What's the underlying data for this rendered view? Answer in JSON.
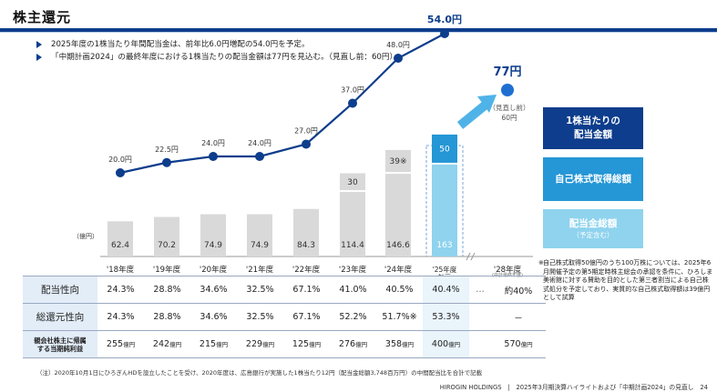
{
  "header": {
    "title": "株主還元"
  },
  "bullets": [
    "2025年度の1株当たり年間配当金は、前年比6.0円増配の54.0円を予定。",
    "「中期計画2024」の最終年度における1株当たりの配当金額は77円を見込む。（見直し前：60円）"
  ],
  "chart_data": {
    "type": "bar",
    "unit_label": "（億円）",
    "categories": [
      "'18年度",
      "'19年度",
      "'20年度",
      "'21年度",
      "'22年度",
      "'23年度",
      "'24年度",
      "'25年度\n計画",
      "'28年度"
    ],
    "category_note": "(中計最終年度)",
    "series": [
      {
        "name": "配当金総額",
        "values": [
          62.4,
          70.2,
          74.9,
          74.9,
          84.3,
          114.4,
          146.6,
          163,
          null
        ]
      },
      {
        "name": "自己株式取得総額",
        "values": [
          null,
          null,
          null,
          null,
          null,
          30,
          39,
          50,
          null
        ]
      },
      {
        "name": "1株当たりの配当金額",
        "values": [
          20.0,
          22.5,
          24.0,
          24.0,
          27.0,
          37.0,
          48.0,
          54.0,
          77
        ]
      }
    ],
    "value_labels": {
      "dps": [
        "20.0円",
        "22.5円",
        "24.0円",
        "24.0円",
        "27.0円",
        "37.0円",
        "48.0円",
        "54.0円",
        "77円"
      ],
      "buyback": [
        "",
        "",
        "",
        "",
        "",
        "30",
        "39※",
        "50",
        ""
      ],
      "dividend": [
        "62.4",
        "70.2",
        "74.9",
        "74.9",
        "84.3",
        "114.4",
        "146.6",
        "163",
        ""
      ]
    },
    "forecast_note": [
      "（見直し前）",
      "60円"
    ]
  },
  "legend": {
    "dps_line1": "1株当たりの",
    "dps_line2": "配当金額",
    "buyback": "自己株式取得総額",
    "dividend": "配当金総額",
    "dividend_sub": "（予定含む）"
  },
  "note": {
    "star": "※",
    "text": "自己株式取得50億円のうち100万株については、2025年6月開催予定の第5期定時株主総会の承認を条件に、ひろしま美術館に対する賛助を目的とした第三者割当による自己株式処分を予定しており、実質的な自己株式取得額は39億円として試算"
  },
  "table": {
    "rows": [
      {
        "label": "配当性向",
        "values": [
          "24.3%",
          "28.8%",
          "34.6%",
          "32.5%",
          "67.1%",
          "41.0%",
          "40.5%",
          "40.4%"
        ],
        "gap": "…",
        "future": "約40%"
      },
      {
        "label": "総還元性向",
        "values": [
          "24.3%",
          "28.8%",
          "34.6%",
          "32.5%",
          "67.1%",
          "52.2%",
          "51.7%※",
          "53.3%"
        ],
        "gap": "",
        "future": "－"
      },
      {
        "label_line1": "親会社株主に帰属",
        "label_line2": "する当期純利益",
        "values": [
          "255",
          "242",
          "215",
          "229",
          "125",
          "276",
          "358",
          "400"
        ],
        "unit": "億円",
        "gap": "",
        "future": "570"
      }
    ]
  },
  "footnote": "（注）2020年10月1日にひろぎんHDを設立したことを受け、2020年度は、広島銀行が実施した1株当たり12円（配当金総額3,748百万円）の中間配当比を合計で記載",
  "footer": "HIROGIN HOLDINGS　|　2025年3月期決算ハイライトおよび「中期計画2024」の見直し　24",
  "colors": {
    "navy": "#0d3d8c",
    "blue": "#2596d6",
    "light_blue": "#8fd3ee",
    "gray_bar": "#d9d9d9"
  }
}
